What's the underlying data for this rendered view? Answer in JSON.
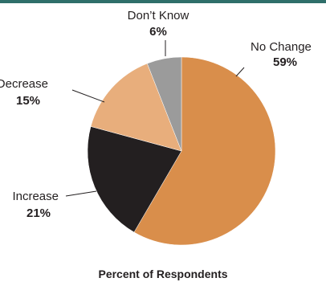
{
  "frame": {
    "top_rule_color": "#2f6f6a"
  },
  "chart_data": {
    "type": "pie",
    "title": "",
    "xlabel": "Percent of Respondents",
    "categories": [
      "No Change",
      "Increase",
      "Decrease",
      "Don’t Know"
    ],
    "values": [
      59,
      21,
      15,
      6
    ],
    "value_labels": [
      "59%",
      "21%",
      "15%",
      "6%"
    ],
    "colors": [
      "#d98e4b",
      "#231f20",
      "#e8ae7c",
      "#9b9b9b"
    ],
    "start": "12 o'clock",
    "direction": "clockwise",
    "legend": "none"
  }
}
